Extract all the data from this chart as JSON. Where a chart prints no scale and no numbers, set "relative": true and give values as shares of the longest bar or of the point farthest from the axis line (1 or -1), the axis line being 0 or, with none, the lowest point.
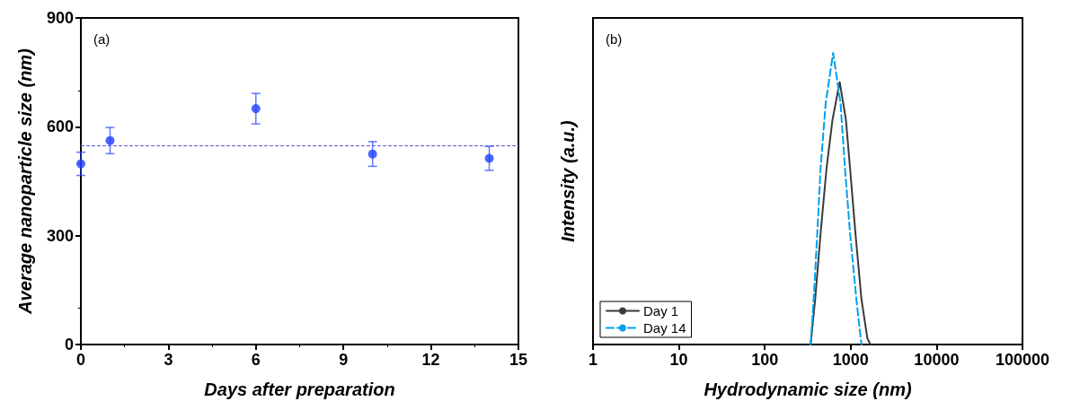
{
  "chart_data": [
    {
      "type": "scatter",
      "annotations": [
        "(a)"
      ],
      "xlabel": "Days after preparation",
      "ylabel": "Average nanoparticle size (nm)",
      "x": [
        0,
        1,
        6,
        10,
        14
      ],
      "values": [
        498,
        562,
        650,
        525,
        513
      ],
      "errors": [
        32,
        36,
        42,
        34,
        33
      ],
      "color": "#1f3fff",
      "xlim": [
        0,
        15
      ],
      "xticks": [
        0,
        3,
        6,
        9,
        12,
        15
      ],
      "ylim": [
        0,
        900
      ],
      "yticks": [
        0,
        300,
        600,
        900
      ],
      "ref_lines": [
        {
          "axis": "y",
          "value": 549,
          "color": "#5a5ae6",
          "line_style": "dashed"
        }
      ],
      "marker": "circle",
      "grid": false,
      "legend": false
    },
    {
      "type": "line",
      "annotations": [
        "(b)"
      ],
      "xlabel": "Hydrodynamic size (nm)",
      "ylabel": "Intensity (a.u.)",
      "relative": true,
      "log": "x",
      "xlim": [
        1,
        100000
      ],
      "xticks": [
        1,
        10,
        100,
        1000,
        10000,
        100000
      ],
      "series": [
        {
          "name": "Day 1",
          "color": "#3a3a3a",
          "line_style": "solid",
          "x": [
            342,
            386,
            446,
            523,
            614,
            745,
            880,
            984,
            1137,
            1334,
            1563,
            1695
          ],
          "values": [
            0,
            0.156,
            0.38,
            0.603,
            0.771,
            0.9,
            0.771,
            0.603,
            0.38,
            0.156,
            0.022,
            0
          ]
        },
        {
          "name": "Day 14",
          "color": "#00a0f0",
          "line_style": "dashed",
          "x": [
            342,
            371,
            408,
            446,
            511,
            624,
            762,
            859,
            984,
            1164,
            1334
          ],
          "values": [
            0,
            0.156,
            0.38,
            0.603,
            0.827,
            1,
            0.827,
            0.603,
            0.38,
            0.156,
            0
          ]
        }
      ],
      "marker": "none",
      "grid": false,
      "legend": "bottom left"
    }
  ]
}
